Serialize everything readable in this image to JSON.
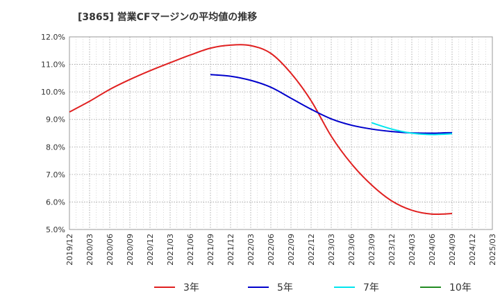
{
  "chart_data": {
    "type": "line",
    "title": "[3865]  営業CFマージンの平均値の推移",
    "xlabel": "",
    "ylabel": "",
    "x_ticks": [
      "2019/12",
      "2020/03",
      "2020/06",
      "2020/09",
      "2020/12",
      "2021/03",
      "2021/06",
      "2021/09",
      "2021/12",
      "2022/03",
      "2022/06",
      "2022/09",
      "2022/12",
      "2023/03",
      "2023/06",
      "2023/09",
      "2023/12",
      "2024/03",
      "2024/06",
      "2024/09",
      "2024/12",
      "2025/03"
    ],
    "y_ticks": [
      "5.0%",
      "6.0%",
      "7.0%",
      "8.0%",
      "9.0%",
      "10.0%",
      "11.0%",
      "12.0%"
    ],
    "ylim": [
      5.0,
      12.0
    ],
    "grid": true,
    "legend_position": "bottom",
    "series": [
      {
        "name": "3年",
        "color": "#e02020",
        "x": [
          "2019/12",
          "2020/03",
          "2020/06",
          "2020/09",
          "2020/12",
          "2021/03",
          "2021/06",
          "2021/09",
          "2021/12",
          "2022/03",
          "2022/06",
          "2022/09",
          "2022/12",
          "2023/03",
          "2023/06",
          "2023/09",
          "2023/12",
          "2024/03",
          "2024/06",
          "2024/09"
        ],
        "values": [
          9.27,
          9.66,
          10.09,
          10.45,
          10.77,
          11.06,
          11.34,
          11.59,
          11.7,
          11.68,
          11.4,
          10.68,
          9.68,
          8.39,
          7.39,
          6.62,
          6.04,
          5.7,
          5.56,
          5.58
        ]
      },
      {
        "name": "5年",
        "color": "#0000cc",
        "x": [
          "2021/09",
          "2021/12",
          "2022/03",
          "2022/06",
          "2022/09",
          "2022/12",
          "2023/03",
          "2023/06",
          "2023/09",
          "2023/12",
          "2024/03",
          "2024/06",
          "2024/09"
        ],
        "values": [
          10.63,
          10.57,
          10.42,
          10.17,
          9.77,
          9.37,
          9.02,
          8.79,
          8.65,
          8.56,
          8.51,
          8.5,
          8.52
        ]
      },
      {
        "name": "7年",
        "color": "#00e5ee",
        "x": [
          "2023/09",
          "2023/12",
          "2024/03",
          "2024/06",
          "2024/09"
        ],
        "values": [
          8.88,
          8.65,
          8.5,
          8.45,
          8.48
        ]
      },
      {
        "name": "10年",
        "color": "#228b22",
        "x": [],
        "values": []
      }
    ]
  }
}
